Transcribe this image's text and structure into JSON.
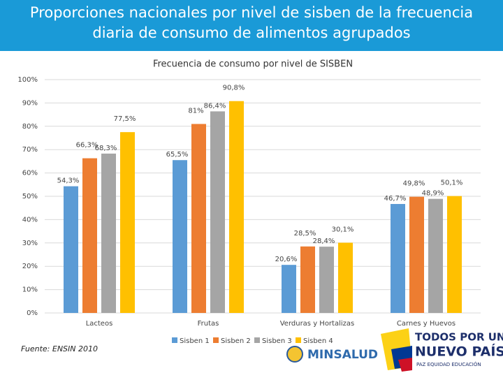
{
  "slide_title": "Proporciones nacionales por nivel de sisben de la frecuencia diaria de consumo de alimentos agrupados",
  "source": "Fuente: ENSIN 2010",
  "logos": {
    "ministry": "MINSALUD",
    "slogan_line1": "TODOS POR UN",
    "slogan_line2": "NUEVO PAÍS",
    "slogan_line3": "PAZ  EQUIDAD  EDUCACIÓN"
  },
  "chart_data": {
    "type": "bar",
    "title": "Frecuencia de consumo por nivel de SISBEN",
    "categories": [
      "Lacteos",
      "Frutas",
      "Verduras y Hortalizas",
      "Carnes y Huevos"
    ],
    "series": [
      {
        "name": "Sisben 1",
        "color": "#5b9bd5",
        "values": [
          54.3,
          65.5,
          20.6,
          46.7
        ],
        "value_labels": [
          "54,3%",
          "65,5%",
          "20,6%",
          "46,7%"
        ]
      },
      {
        "name": "Sisben 2",
        "color": "#ed7d31",
        "values": [
          66.3,
          81,
          28.5,
          49.8
        ],
        "value_labels": [
          "66,3%",
          "81%",
          "28,5%",
          "49,8%"
        ]
      },
      {
        "name": "Sisben 3",
        "color": "#a5a5a5",
        "values": [
          68.3,
          86.4,
          28.4,
          48.9
        ],
        "value_labels": [
          "68,3%",
          "86,4%",
          "28,4%",
          "48,9%"
        ]
      },
      {
        "name": "Sisben 4",
        "color": "#ffc000",
        "values": [
          77.5,
          90.8,
          30.1,
          50.1
        ],
        "value_labels": [
          "77,5%",
          "90,8%",
          "30,1%",
          "50,1%"
        ]
      }
    ],
    "ylim": [
      0,
      100
    ],
    "yticks": [
      {
        "value": 0,
        "label": "0%"
      },
      {
        "value": 10,
        "label": "10%"
      },
      {
        "value": 20,
        "label": "20%"
      },
      {
        "value": 30,
        "label": "30%"
      },
      {
        "value": 40,
        "label": "40%"
      },
      {
        "value": 50,
        "label": "50%"
      },
      {
        "value": 60,
        "label": "60%"
      },
      {
        "value": 70,
        "label": "70%"
      },
      {
        "value": 80,
        "label": "80%"
      },
      {
        "value": 90,
        "label": "90%"
      },
      {
        "value": 100,
        "label": "100%"
      }
    ],
    "grid": true,
    "legend": "bottom"
  }
}
